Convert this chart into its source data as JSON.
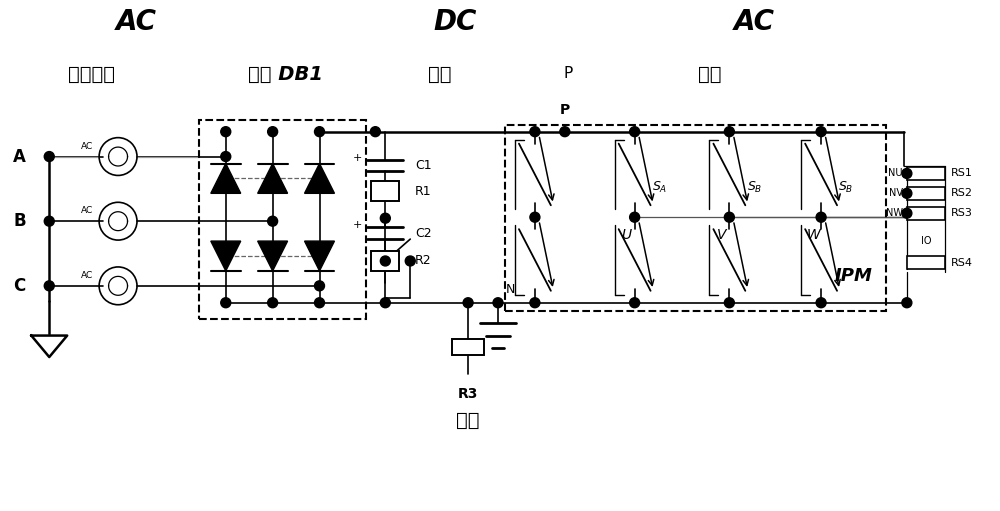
{
  "bg_color": "#ffffff",
  "line_color": "#000000",
  "labels": {
    "AC_left": "AC",
    "DC_top": "DC",
    "AC_right": "AC",
    "jiaoliu": "交流输入",
    "zhengliu": "整流 DB1",
    "lübo": "滤波",
    "P_label": "P",
    "nibian": "逆变",
    "chongdian": "充电",
    "A": "A",
    "B": "B",
    "C": "C",
    "R1": "R1",
    "R2": "R2",
    "R3": "R3",
    "C1": "C1",
    "C2": "C2",
    "N": "N",
    "SA": "$S_A$",
    "SB": "$S_B$",
    "SC": "$S_B$",
    "U": "U",
    "V": "V",
    "W": "W",
    "NU": "NU",
    "NV": "NV",
    "NW": "NW",
    "RS1": "RS1",
    "RS2": "RS2",
    "RS3": "RS3",
    "RS4": "RS4",
    "IO": "IO",
    "IPM": "IPM",
    "AC_label": "AC"
  }
}
